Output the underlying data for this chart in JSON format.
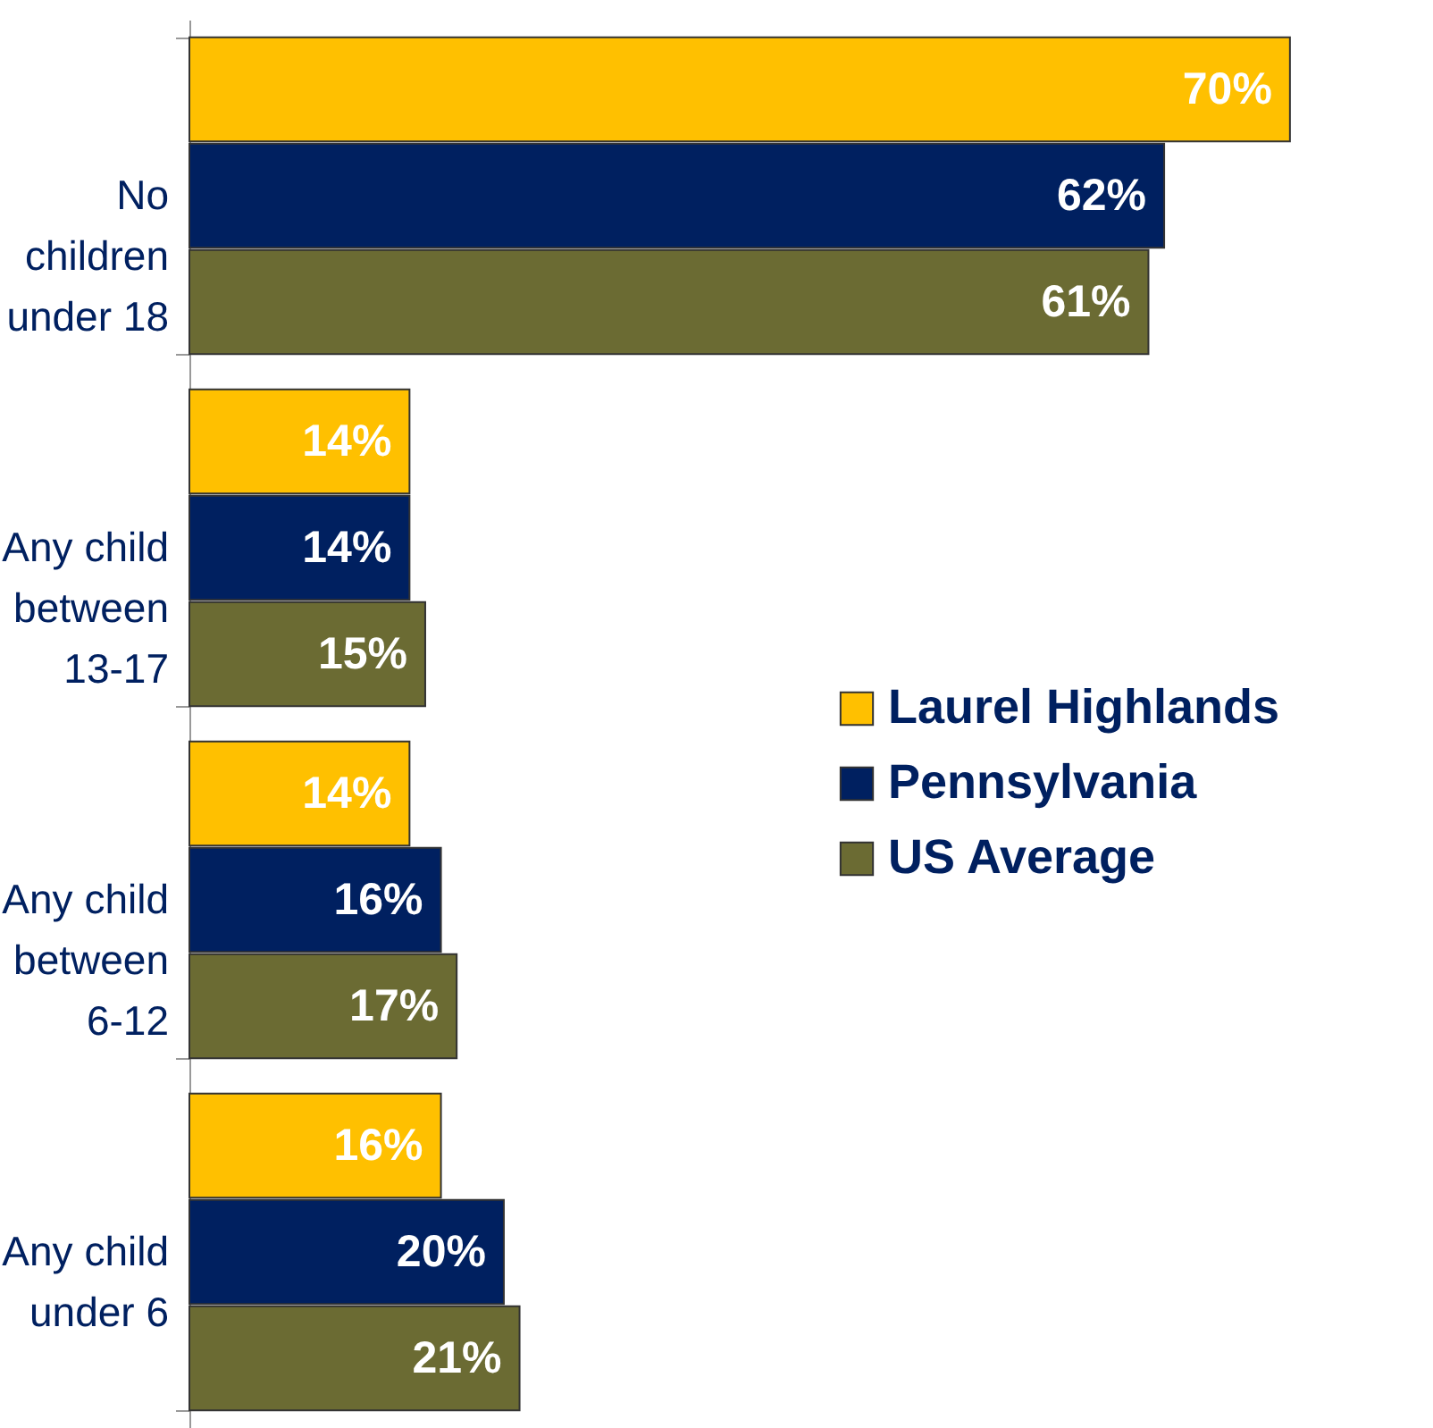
{
  "chart_data": {
    "type": "bar",
    "orientation": "horizontal",
    "categories": [
      "No children under 18",
      "Any child between 13-17",
      "Any child between 6-12",
      "Any child under 6"
    ],
    "series": [
      {
        "name": "Laurel Highlands",
        "color": "#ffc000",
        "values": [
          70,
          14,
          14,
          16
        ],
        "value_labels": [
          "70%",
          "14%",
          "14%",
          "16%"
        ]
      },
      {
        "name": "Pennsylvania",
        "color": "#002060",
        "values": [
          62,
          14,
          16,
          20
        ],
        "value_labels": [
          "62%",
          "14%",
          "16%",
          "20%"
        ]
      },
      {
        "name": "US Average",
        "color": "#6b6b33",
        "values": [
          61,
          15,
          17,
          21
        ],
        "value_labels": [
          "61%",
          "15%",
          "17%",
          "21%"
        ]
      }
    ],
    "legend": "right"
  }
}
